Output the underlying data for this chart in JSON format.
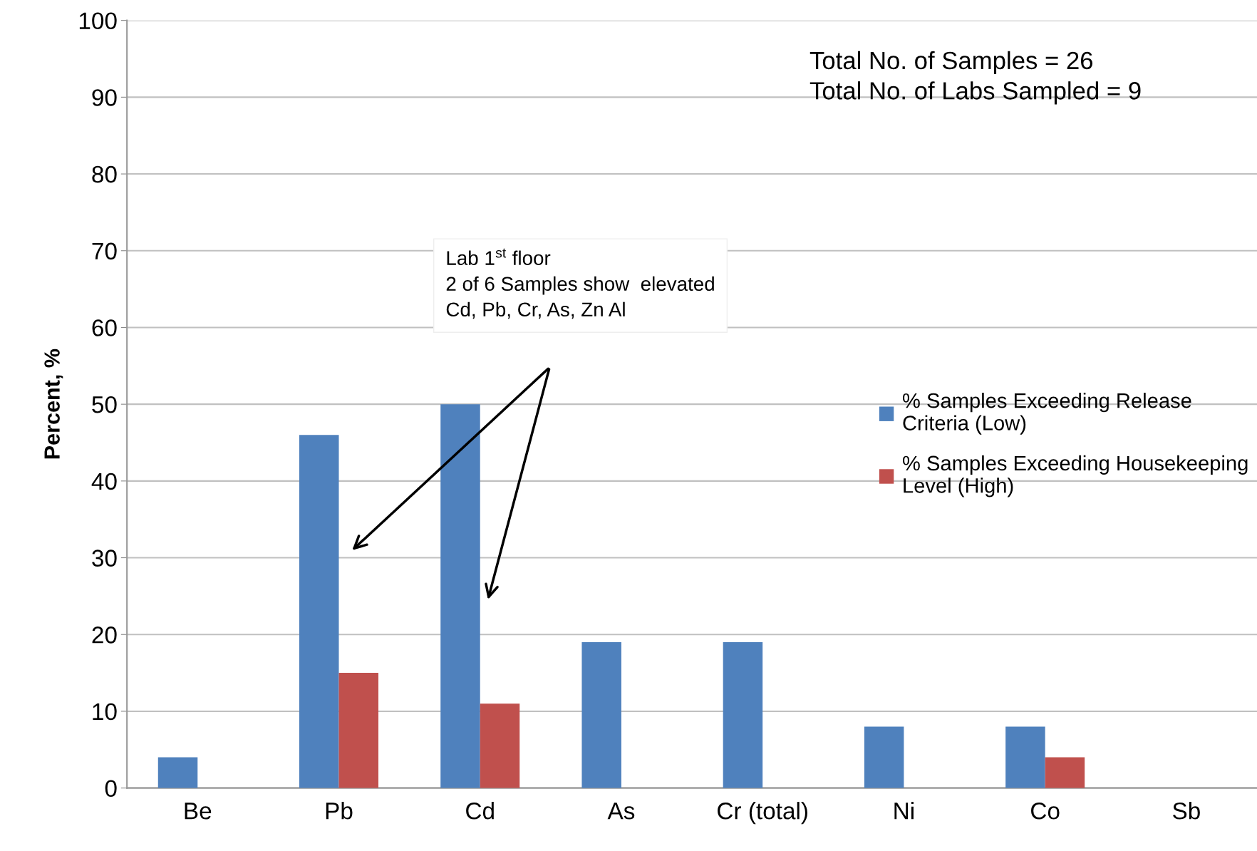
{
  "chart_data": {
    "type": "bar",
    "ylabel": "Percent, %",
    "categories": [
      "Be",
      "Pb",
      "Cd",
      "As",
      "Cr (total)",
      "Ni",
      "Co",
      "Sb"
    ],
    "series": [
      {
        "name": "% Samples Exceeding Release Criteria (Low)",
        "color": "#4f81bd",
        "values": [
          4,
          46,
          50,
          19,
          19,
          8,
          8,
          0
        ]
      },
      {
        "name": "% Samples Exceeding Housekeeping Level (High)",
        "color": "#c0504d",
        "values": [
          0,
          15,
          11,
          0,
          0,
          0,
          4,
          0
        ]
      }
    ],
    "ylim": [
      0,
      100
    ],
    "yticks": [
      0,
      10,
      20,
      30,
      40,
      50,
      60,
      70,
      80,
      90,
      100
    ],
    "grid": "y",
    "legend": "right",
    "annotations": [
      "Total No. of Samples = 26\nTotal No. of Labs Sampled = 9",
      "Lab 1$^{st}$ floor\n2 of 6 Samples show  elevated\nCd, Pb, Cr, As, Zn Al"
    ]
  }
}
